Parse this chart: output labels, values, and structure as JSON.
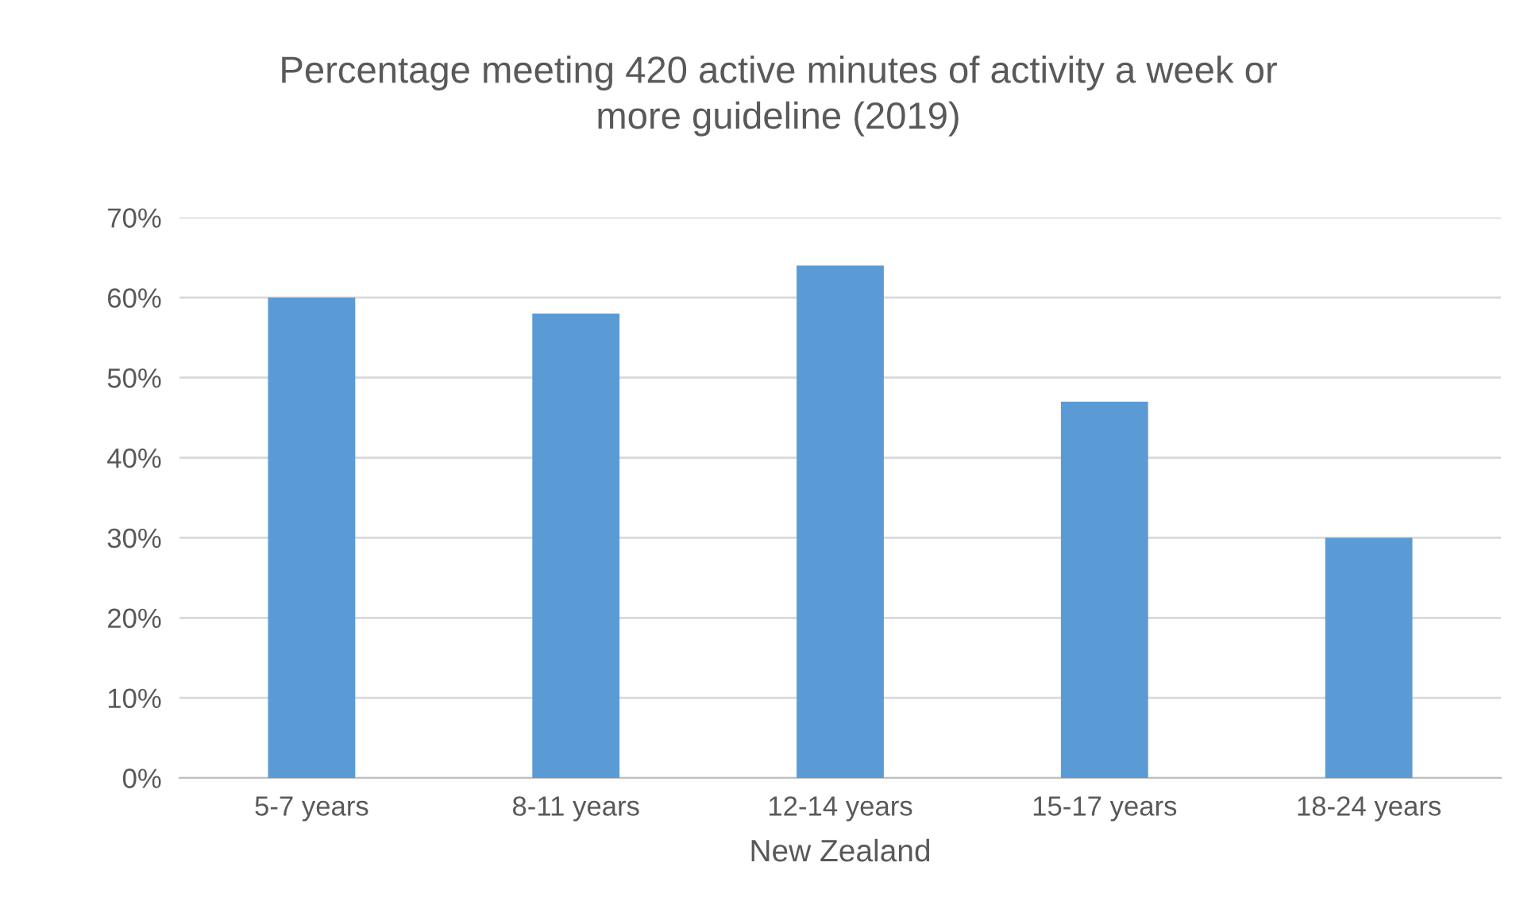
{
  "chart_data": {
    "type": "bar",
    "title": "Percentage meeting 420 active minutes of activity a week or\nmore guideline (2019)",
    "xlabel": "New Zealand",
    "categories": [
      "5-7 years",
      "8-11 years",
      "12-14 years",
      "15-17 years",
      "18-24 years"
    ],
    "values": [
      60,
      58,
      64,
      47,
      30
    ],
    "color": "#5b9bd5",
    "ylim": [
      0,
      70
    ],
    "yticks": [
      {
        "value": 0,
        "label": "0%"
      },
      {
        "value": 10,
        "label": "10%"
      },
      {
        "value": 20,
        "label": "20%"
      },
      {
        "value": 30,
        "label": "30%"
      },
      {
        "value": 40,
        "label": "40%"
      },
      {
        "value": 50,
        "label": "50%"
      },
      {
        "value": 60,
        "label": "60%"
      },
      {
        "value": 70,
        "label": "70%"
      }
    ],
    "grid": "y",
    "legend": false
  }
}
